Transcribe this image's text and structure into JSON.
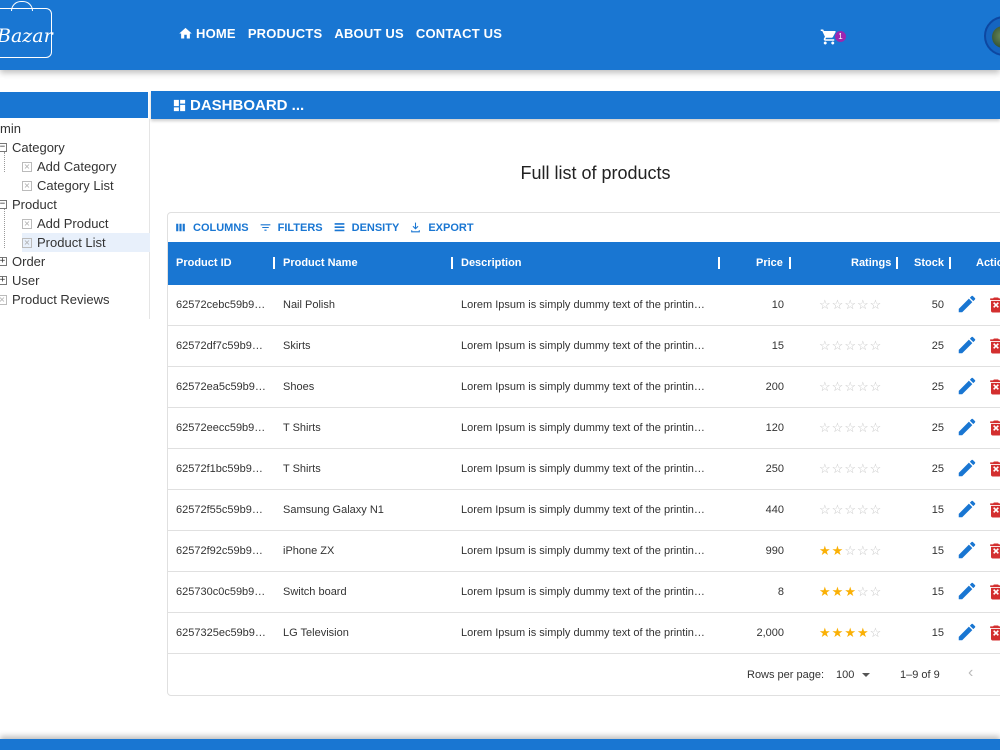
{
  "header": {
    "logo_text": "Bazar",
    "nav": [
      {
        "label": "HOME",
        "icon": "home-icon"
      },
      {
        "label": "PRODUCTS"
      },
      {
        "label": "ABOUT US"
      },
      {
        "label": "CONTACT US"
      }
    ],
    "cart_count": "1"
  },
  "dashboard": {
    "title": "DASHBOARD ..."
  },
  "sidebar": {
    "root_label": "min",
    "items": [
      {
        "label": "Category"
      },
      {
        "label": "Add Category"
      },
      {
        "label": "Category List"
      },
      {
        "label": "Product"
      },
      {
        "label": "Add Product"
      },
      {
        "label": "Product List"
      },
      {
        "label": "Order"
      },
      {
        "label": "User"
      },
      {
        "label": "Product Reviews"
      }
    ]
  },
  "main": {
    "title": "Full list of products"
  },
  "toolbar": {
    "columns_label": "COLUMNS",
    "filters_label": "FILTERS",
    "density_label": "DENSITY",
    "export_label": "EXPORT"
  },
  "table": {
    "columns": {
      "id": "Product ID",
      "name": "Product Name",
      "description": "Description",
      "price": "Price",
      "ratings": "Ratings",
      "stock": "Stock",
      "actions": "Actio"
    },
    "rows": [
      {
        "id": "62572cebc59b9…",
        "name": "Nail Polish",
        "description": "Lorem Ipsum is simply dummy text of the printin…",
        "price": "10",
        "rating": 0,
        "stock": "50"
      },
      {
        "id": "62572df7c59b9…",
        "name": "Skirts",
        "description": "Lorem Ipsum is simply dummy text of the printin…",
        "price": "15",
        "rating": 0,
        "stock": "25"
      },
      {
        "id": "62572ea5c59b9…",
        "name": "Shoes",
        "description": "Lorem Ipsum is simply dummy text of the printin…",
        "price": "200",
        "rating": 0,
        "stock": "25"
      },
      {
        "id": "62572eecc59b9…",
        "name": "T Shirts",
        "description": "Lorem Ipsum is simply dummy text of the printin…",
        "price": "120",
        "rating": 0,
        "stock": "25"
      },
      {
        "id": "62572f1bc59b9…",
        "name": "T Shirts",
        "description": "Lorem Ipsum is simply dummy text of the printin…",
        "price": "250",
        "rating": 0,
        "stock": "25"
      },
      {
        "id": "62572f55c59b9…",
        "name": "Samsung Galaxy N1",
        "description": "Lorem Ipsum is simply dummy text of the printin…",
        "price": "440",
        "rating": 0,
        "stock": "15"
      },
      {
        "id": "62572f92c59b9…",
        "name": "iPhone ZX",
        "description": "Lorem Ipsum is simply dummy text of the printin…",
        "price": "990",
        "rating": 2,
        "stock": "15"
      },
      {
        "id": "625730c0c59b9…",
        "name": "Switch board",
        "description": "Lorem Ipsum is simply dummy text of the printin…",
        "price": "8",
        "rating": 3,
        "stock": "15"
      },
      {
        "id": "6257325ec59b9…",
        "name": "LG Television",
        "description": "Lorem Ipsum is simply dummy text of the printin…",
        "price": "2,000",
        "rating": 4,
        "stock": "15"
      }
    ]
  },
  "pagination": {
    "rows_per_page_label": "Rows per page:",
    "rows_per_page_value": "100",
    "range": "1–9 of 9"
  },
  "colors": {
    "primary": "#1976d2",
    "star": "#fab005",
    "delete": "#d32f2f"
  }
}
